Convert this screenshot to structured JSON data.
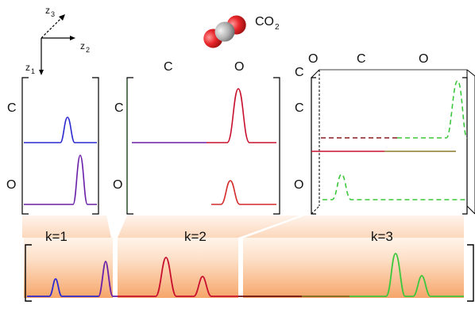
{
  "molecule": {
    "prefix": "CO",
    "subscript": "2"
  },
  "axes": {
    "z1": {
      "base": "z",
      "sub": "1"
    },
    "z2": {
      "base": "z",
      "sub": "2"
    },
    "z3": {
      "base": "z",
      "sub": "3"
    }
  },
  "block1": {
    "row_top": "C",
    "row_bottom": "O"
  },
  "block2": {
    "col_left": "C",
    "col_right": "O",
    "row_top": "C",
    "row_bottom": "O"
  },
  "block3": {
    "col_0": "O",
    "col_1": "C",
    "col_2": "O",
    "row_0": "C",
    "row_1": "C",
    "row_2": "O"
  },
  "bottom": {
    "k1": "k=1",
    "k2": "k=2",
    "k3": "k=3"
  },
  "colors": {
    "blue": "#2a2ad0",
    "purple": "#6a1fa8",
    "crimson": "#c8102e",
    "red": "#d42a2a",
    "green": "#3cc83c",
    "darkred": "#8b1a1a",
    "olive": "#8a7a2a",
    "band_light": "#fde0c8",
    "band_dark": "#f7a870",
    "oxygen": "#e8262a",
    "carbon": "#a9a9a9"
  }
}
